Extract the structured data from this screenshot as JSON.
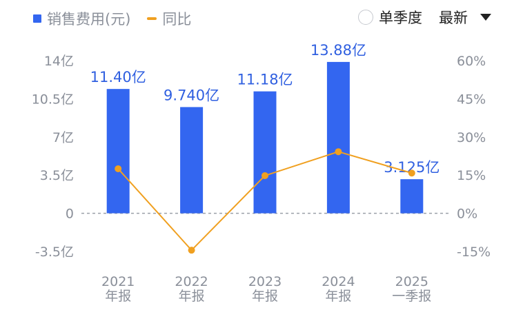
{
  "legend": {
    "bar_label": "销售费用(元)",
    "line_label": "同比"
  },
  "controls": {
    "single_quarter_label": "单季度",
    "sort_label": "最新"
  },
  "colors": {
    "bar": "#3366f0",
    "line": "#f0a020",
    "value_label": "#2f5fe0"
  },
  "chart_data": {
    "type": "bar",
    "categories": [
      [
        "2021",
        "年报"
      ],
      [
        "2022",
        "年报"
      ],
      [
        "2023",
        "年报"
      ],
      [
        "2024",
        "年报"
      ],
      [
        "2025",
        "一季报"
      ]
    ],
    "series": [
      {
        "name": "销售费用(元)",
        "type": "bar",
        "axis": "left",
        "values": [
          11.4,
          9.74,
          11.18,
          13.88,
          3.125
        ],
        "labels": [
          "11.40亿",
          "9.740亿",
          "11.18亿",
          "13.88亿",
          "3.125亿"
        ]
      },
      {
        "name": "同比",
        "type": "line",
        "axis": "right",
        "values": [
          17.5,
          -14.5,
          14.8,
          24.2,
          15.8
        ]
      }
    ],
    "left_axis": {
      "ylim": [
        -3.5,
        14
      ],
      "ticks": [
        14,
        10.5,
        7,
        3.5,
        0,
        -3.5
      ],
      "tick_labels": [
        "14亿",
        "10.5亿",
        "7亿",
        "3.5亿",
        "0",
        "-3.5亿"
      ]
    },
    "right_axis": {
      "ylim": [
        -15,
        60
      ],
      "ticks": [
        60,
        45,
        30,
        15,
        0,
        -15
      ],
      "tick_labels": [
        "60%",
        "45%",
        "30%",
        "15%",
        "0%",
        "-15%"
      ]
    },
    "zero_line": "dashed",
    "grid": false
  }
}
